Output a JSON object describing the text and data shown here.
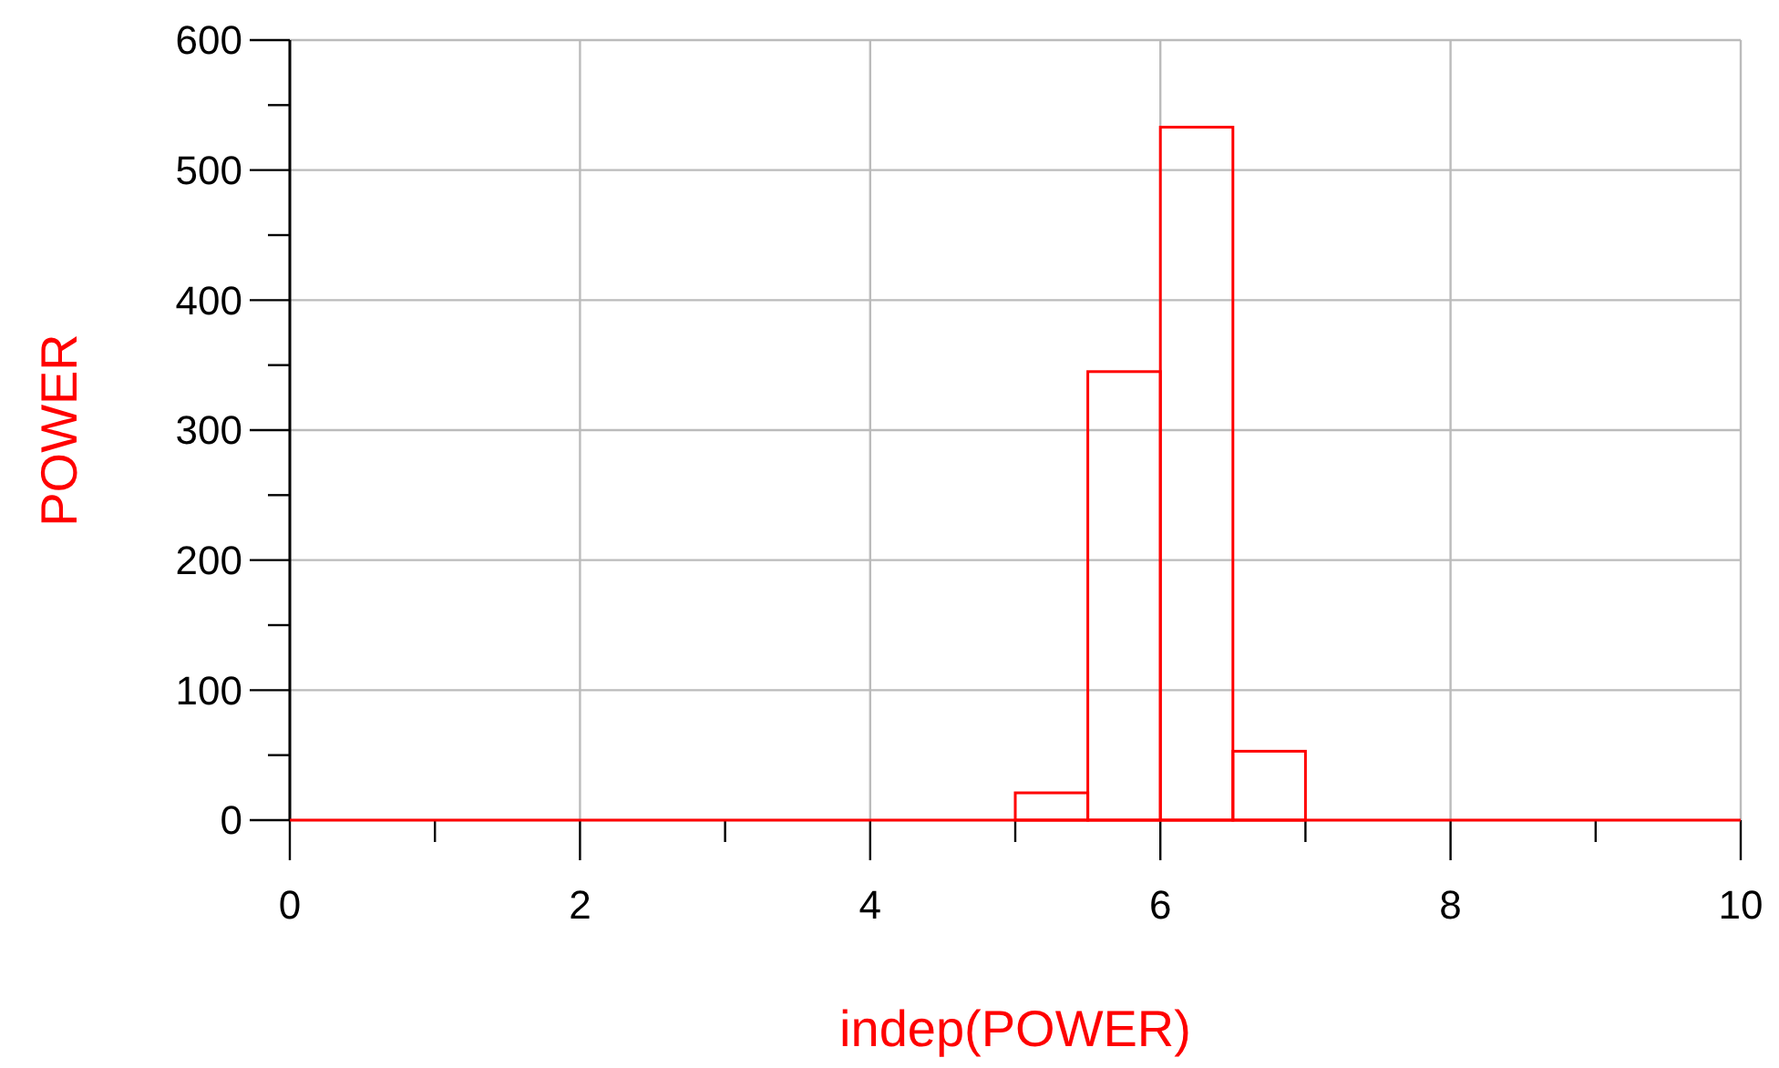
{
  "chart_data": {
    "type": "histogram",
    "xlabel": "indep(POWER)",
    "ylabel": "POWER",
    "color": "#ff0000",
    "bins": [
      0,
      0.5,
      1,
      1.5,
      2,
      2.5,
      3,
      3.5,
      4,
      4.5,
      5,
      5.5,
      6,
      6.5,
      7,
      7.5,
      8,
      8.5,
      9,
      9.5,
      10
    ],
    "values": [
      0,
      0,
      0,
      0,
      0,
      0,
      0,
      0,
      0,
      0,
      21,
      345,
      533,
      53,
      0,
      0,
      0,
      0,
      0,
      0
    ],
    "xlim": [
      0,
      10
    ],
    "xticks": [
      0,
      {
        "value": 1,
        "label": null
      },
      2,
      {
        "value": 3,
        "label": null
      },
      4,
      {
        "value": 5,
        "label": null
      },
      6,
      {
        "value": 7,
        "label": null
      },
      8,
      {
        "value": 9,
        "label": null
      },
      10
    ],
    "ylim": [
      0,
      600
    ],
    "yticks": [
      0,
      {
        "value": 50,
        "label": null
      },
      100,
      {
        "value": 150,
        "label": null
      },
      200,
      {
        "value": 250,
        "label": null
      },
      300,
      {
        "value": 350,
        "label": null
      },
      400,
      {
        "value": 450,
        "label": null
      },
      500,
      {
        "value": 550,
        "label": null
      },
      600
    ],
    "grid": true
  }
}
